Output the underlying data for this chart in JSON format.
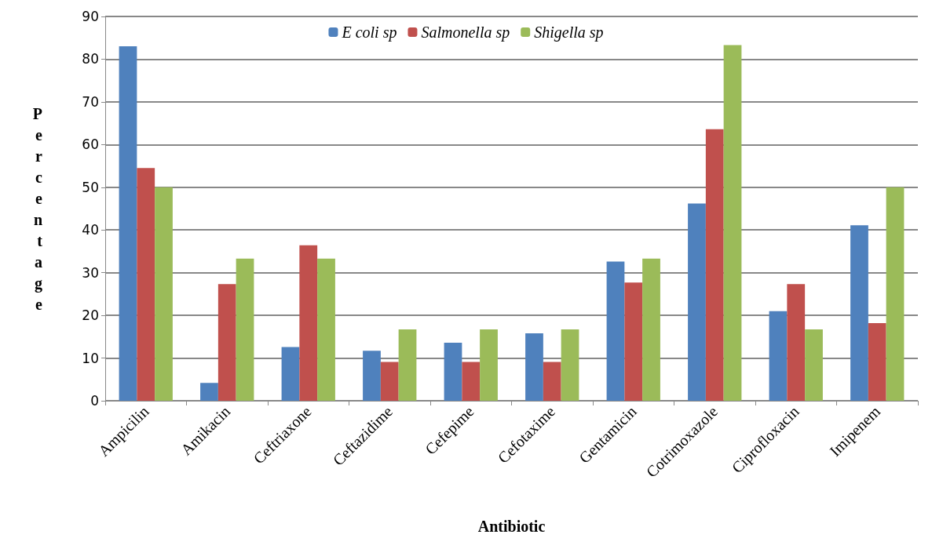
{
  "chart_data": {
    "type": "bar",
    "xlabel": "Antibiotic",
    "ylabel": "Percentage",
    "categories": [
      "Ampicilin",
      "Amikacin",
      "Ceftriaxone",
      "Ceftazidime",
      "Cefepime",
      "Cefotaxime",
      "Gentamicin",
      "Cotrimoxazole",
      "Ciprofloxacin",
      "Imipenem"
    ],
    "series": [
      {
        "name": "E coli sp",
        "color": "#4f81bd",
        "values": [
          83,
          4.2,
          12.6,
          11.7,
          13.6,
          15.8,
          32.6,
          46.2,
          21,
          41.1
        ]
      },
      {
        "name": "Salmonella sp",
        "color": "#c0504d",
        "values": [
          54.5,
          27.3,
          36.4,
          9.1,
          9.1,
          9.1,
          27.7,
          63.6,
          27.3,
          18.2
        ]
      },
      {
        "name": "Shigella sp",
        "color": "#9bbb59",
        "values": [
          50,
          33.3,
          33.3,
          16.7,
          16.7,
          16.7,
          33.3,
          83.3,
          16.7,
          50
        ]
      }
    ],
    "ylim": [
      0,
      90
    ],
    "yticks": [
      0,
      10,
      20,
      30,
      40,
      50,
      60,
      70,
      80,
      90
    ],
    "grid": "y",
    "legend": "top"
  }
}
